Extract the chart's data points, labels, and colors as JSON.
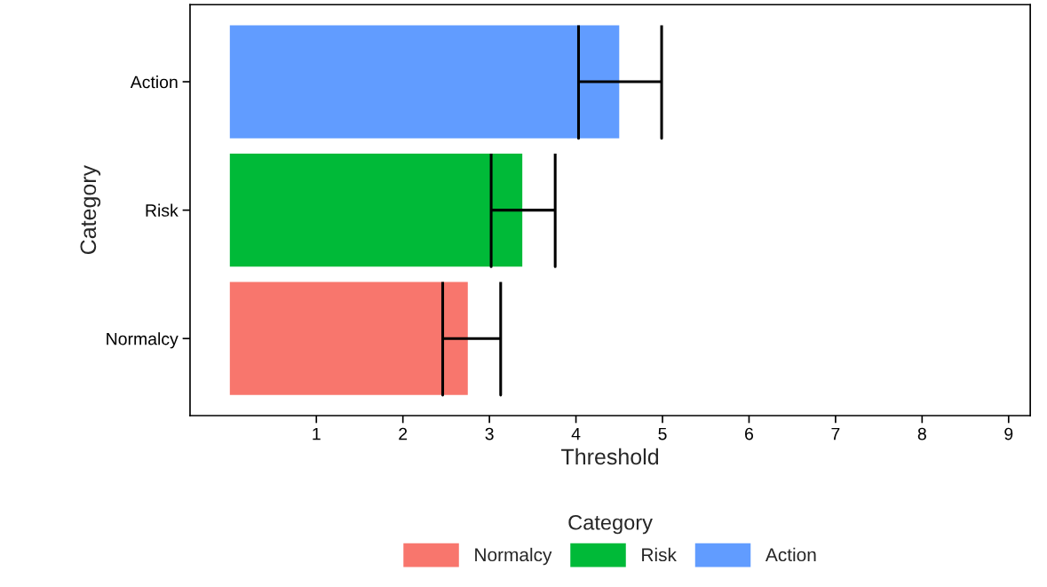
{
  "chart_data": {
    "type": "bar",
    "orientation": "horizontal",
    "xlabel": "Threshold",
    "ylabel": "Category",
    "legend_title": "Category",
    "legend": "bottom",
    "grid": false,
    "categories": [
      "Action",
      "Risk",
      "Normalcy"
    ],
    "series": [
      {
        "name": "Normalcy",
        "color": "#f8766d",
        "values": [
          null,
          null,
          2.75
        ],
        "errors": [
          null,
          null,
          [
            2.46,
            3.13
          ]
        ]
      },
      {
        "name": "Risk",
        "color": "#00ba38",
        "values": [
          null,
          3.38,
          null
        ],
        "errors": [
          null,
          [
            3.02,
            3.76
          ],
          null
        ]
      },
      {
        "name": "Action",
        "color": "#619cff",
        "values": [
          4.5,
          null,
          null
        ],
        "errors": [
          [
            4.03,
            4.99
          ],
          null,
          null
        ]
      }
    ],
    "xlim": [
      -0.46,
      9.25
    ],
    "xticks": [
      1,
      2,
      3,
      4,
      5,
      6,
      7,
      8,
      9
    ]
  }
}
